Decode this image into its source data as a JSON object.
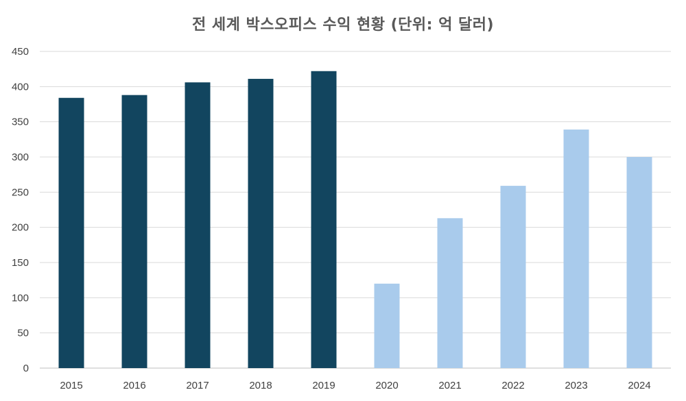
{
  "chart_data": {
    "type": "bar",
    "title": "전 세계 박스오피스 수익 현황 (단위: 억 달러)",
    "xlabel": "",
    "ylabel": "",
    "categories": [
      "2015",
      "2016",
      "2017",
      "2018",
      "2019",
      "2020",
      "2021",
      "2022",
      "2023",
      "2024"
    ],
    "values": [
      384,
      388,
      406,
      411,
      422,
      120,
      213,
      259,
      339,
      300
    ],
    "bar_colors": [
      "#12455f",
      "#12455f",
      "#12455f",
      "#12455f",
      "#12455f",
      "#a9cbec",
      "#a9cbec",
      "#a9cbec",
      "#a9cbec",
      "#a9cbec"
    ],
    "ylim": [
      0,
      450
    ],
    "yticks": [
      0,
      50,
      100,
      150,
      200,
      250,
      300,
      350,
      400,
      450
    ],
    "grid": true,
    "legend": "none"
  }
}
